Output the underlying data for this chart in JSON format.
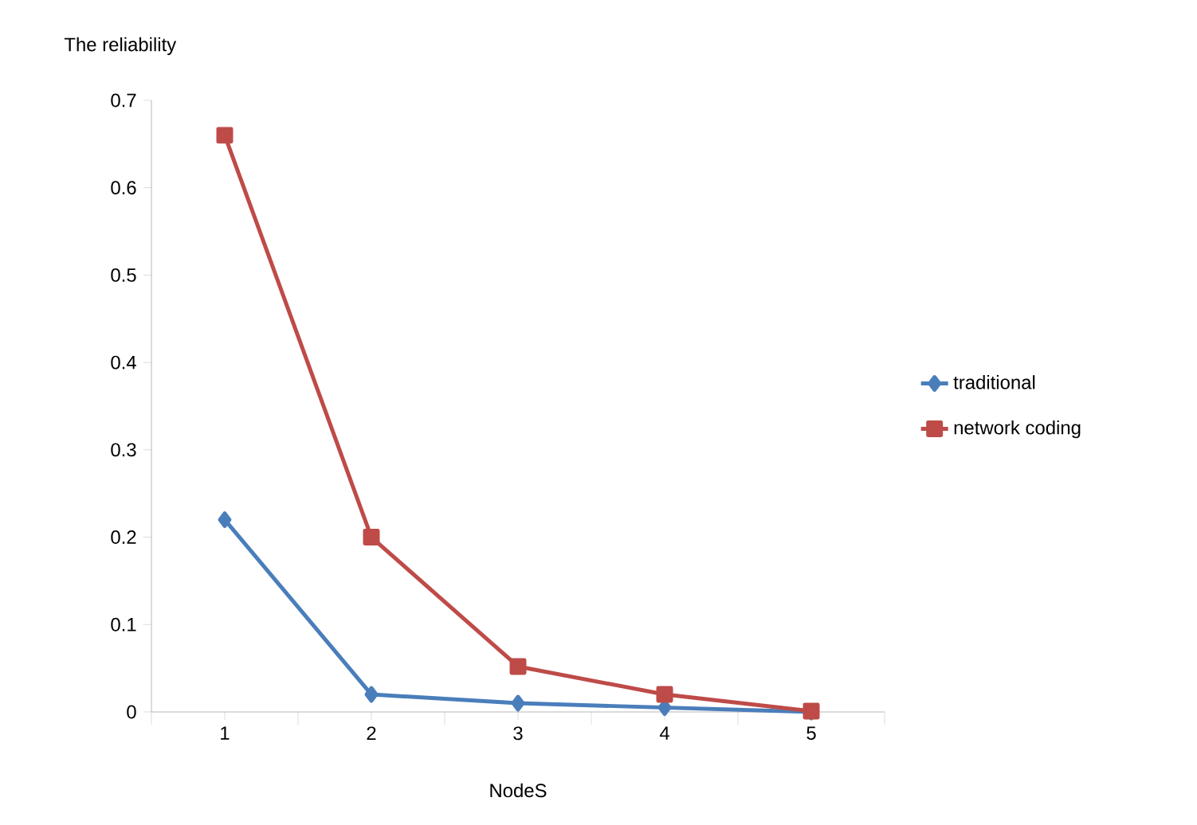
{
  "chart_data": {
    "type": "line",
    "ylabel": "The  reliability",
    "xlabel": "NodeS",
    "categories": [
      "1",
      "2",
      "3",
      "4",
      "5"
    ],
    "series": [
      {
        "name": "traditional",
        "color": "#4a7ebb",
        "marker": "diamond",
        "values": [
          0.22,
          0.02,
          0.01,
          0.005,
          0.0
        ]
      },
      {
        "name": "network coding",
        "color": "#be4b48",
        "marker": "square",
        "values": [
          0.66,
          0.2,
          0.052,
          0.02,
          0.001
        ]
      }
    ],
    "ylim": [
      0,
      0.7
    ],
    "yticks": [
      0,
      0.1,
      0.2,
      0.3,
      0.4,
      0.5,
      0.6,
      0.7
    ],
    "legend": "right",
    "grid": false,
    "line_style": "solid"
  }
}
